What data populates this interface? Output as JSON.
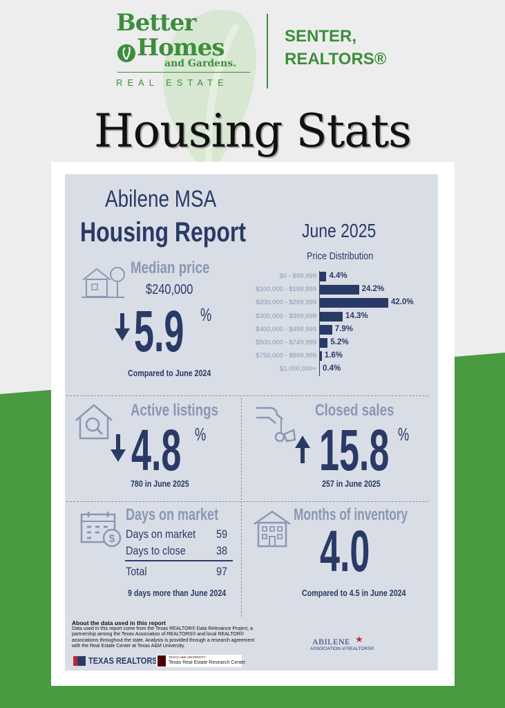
{
  "brand": {
    "logo_line1": "Better",
    "logo_line2": "Homes",
    "logo_line3": "and Gardens.",
    "logo_sub": "REAL ESTATE",
    "agency_line1": "SENTER,",
    "agency_line2": "REALTORS®"
  },
  "page_title": "Housing Stats",
  "report": {
    "region": "Abilene MSA",
    "report_name": "Housing Report",
    "period": "June 2025"
  },
  "median_price": {
    "label": "Median price",
    "value": "$240,000",
    "change": "5.9",
    "unit": "%",
    "direction": "down",
    "note": "Compared to June 2024"
  },
  "chart_data": {
    "type": "bar",
    "title": "Price Distribution",
    "orientation": "horizontal",
    "categories": [
      "$0 - $99,999",
      "$100,000 - $199,999",
      "$200,000 - $299,999",
      "$300,000 - $399,999",
      "$400,000 - $499,999",
      "$500,000 - $749,999",
      "$750,000 - $999,999",
      "$1,000,000+"
    ],
    "values": [
      4.4,
      24.2,
      42.0,
      14.3,
      7.9,
      5.2,
      1.6,
      0.4
    ],
    "value_labels": [
      "4.4%",
      "24.2%",
      "42.0%",
      "14.3%",
      "7.9%",
      "5.2%",
      "1.6%",
      "0.4%"
    ],
    "bar_color": "#2a3a66"
  },
  "active_listings": {
    "label": "Active listings",
    "change": "4.8",
    "unit": "%",
    "direction": "down",
    "note": "780 in June 2025"
  },
  "closed_sales": {
    "label": "Closed sales",
    "change": "15.8",
    "unit": "%",
    "direction": "up",
    "note": "257 in June 2025"
  },
  "days_on_market": {
    "label": "Days on market",
    "rows": [
      {
        "label": "Days on market",
        "value": "59"
      },
      {
        "label": "Days to close",
        "value": "38"
      }
    ],
    "total_label": "Total",
    "total_value": "97",
    "note": "9 days more than June 2024"
  },
  "months_inventory": {
    "label": "Months of inventory",
    "value": "4.0",
    "note": "Compared to 4.5 in June 2024"
  },
  "about": {
    "heading": "About the data used in this report",
    "line1": "Data used in this report come from the Texas REALTOR® Data Relevance Project, a",
    "line2": "partnership among the Texas Association of REALTORS® and local REALTOR®",
    "line3": "associations throughout the state. Analysis is provided through a research agreement",
    "line4": "with the Real Estate Center at Texas A&M University."
  },
  "footer": {
    "texas_realtors": "TEXAS REALTORS",
    "tamu_small": "TEXAS A&M UNIVERSITY",
    "tamu_center": "Texas Real Estate Research Center",
    "abilene_line1": "ABILENE",
    "abilene_line2": "ASSOCIATION of REALTORS®"
  },
  "colors": {
    "navy": "#2a3a66",
    "muted": "#8a97b3",
    "green": "#3d8e3b",
    "panel": "#d9dde6"
  }
}
